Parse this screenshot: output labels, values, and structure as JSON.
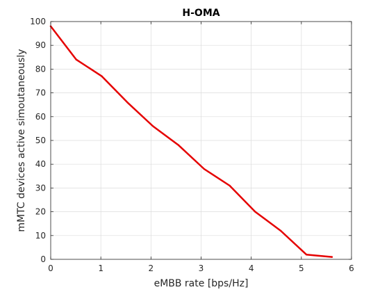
{
  "chart_data": {
    "type": "line",
    "title": "H-OMA",
    "xlabel": "eMBB rate [bps/Hz]",
    "ylabel": "mMTC devices active simoutaneously",
    "xlim": [
      0,
      6
    ],
    "ylim": [
      0,
      100
    ],
    "xticks": [
      0,
      1,
      2,
      3,
      4,
      5,
      6
    ],
    "yticks": [
      0,
      10,
      20,
      30,
      40,
      50,
      60,
      70,
      80,
      90,
      100
    ],
    "grid": true,
    "legend": "none",
    "series": [
      {
        "color": "#e50000",
        "x": [
          0,
          0.51,
          1.02,
          1.53,
          2.04,
          2.55,
          3.06,
          3.57,
          4.08,
          4.59,
          5.1,
          5.61
        ],
        "y": [
          98,
          84,
          77,
          66,
          56,
          48,
          38,
          31,
          20,
          12,
          2,
          1
        ]
      }
    ]
  }
}
